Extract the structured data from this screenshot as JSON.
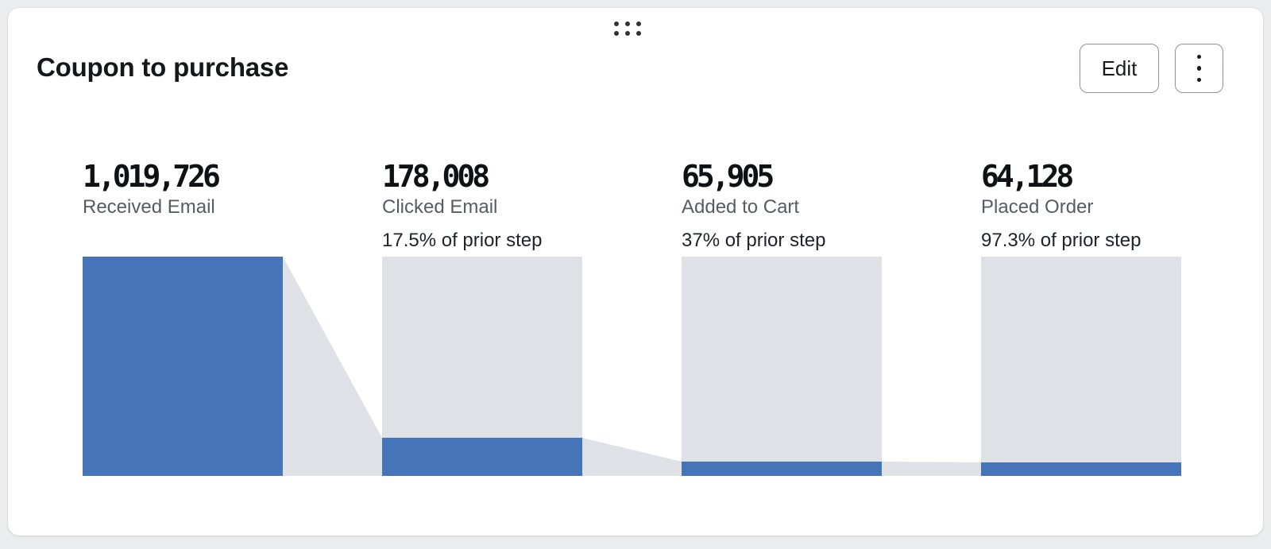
{
  "widget": {
    "title": "Coupon to purchase",
    "drag_handle_icon": "drag-dots-grid",
    "actions": {
      "edit_label": "Edit",
      "menu_icon": "kebab-vertical"
    }
  },
  "chart_data": {
    "type": "funnel",
    "title": "Coupon to purchase",
    "orientation": "horizontal-steps",
    "scale": "relative-to-first-step",
    "steps": [
      {
        "label": "Received Email",
        "value": 1019726,
        "value_formatted": "1,019,726",
        "pct_of_prior": null,
        "pct_of_prior_label": ""
      },
      {
        "label": "Clicked Email",
        "value": 178008,
        "value_formatted": "178,008",
        "pct_of_prior": 17.5,
        "pct_of_prior_label": "17.5% of prior step"
      },
      {
        "label": "Added to Cart",
        "value": 65905,
        "value_formatted": "65,905",
        "pct_of_prior": 37,
        "pct_of_prior_label": "37% of prior step"
      },
      {
        "label": "Placed Order",
        "value": 64128,
        "value_formatted": "64,128",
        "pct_of_prior": 97.3,
        "pct_of_prior_label": "97.3% of prior step"
      }
    ],
    "colors": {
      "bar_fill": "#4574b8",
      "bar_track": "#dee1e5",
      "connector": "#dee1e5"
    }
  }
}
